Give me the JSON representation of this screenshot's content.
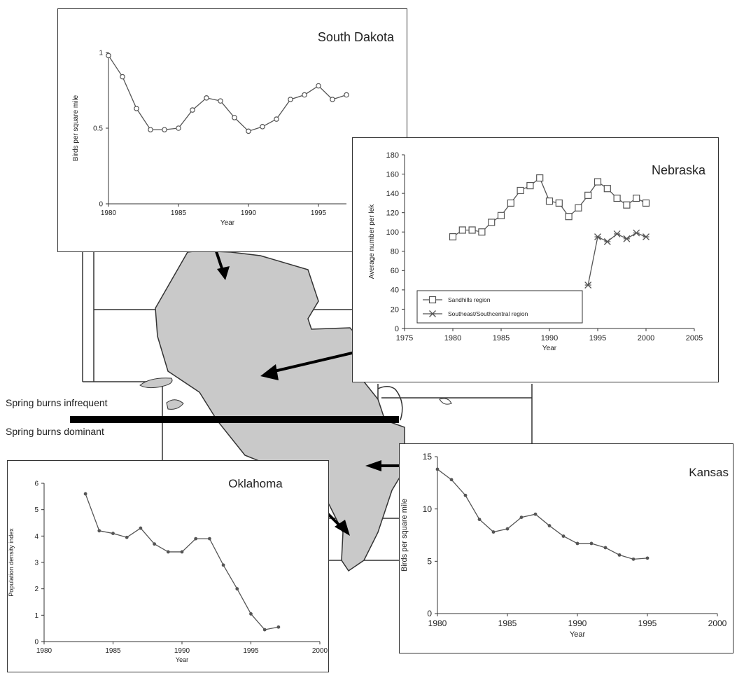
{
  "burn_labels": {
    "infrequent": "Spring burns infrequent",
    "dominant": "Spring burns dominant"
  },
  "colors": {
    "line": "#555555",
    "frame": "#333333",
    "map_fill": "#c9c9c9",
    "text": "#222222"
  },
  "chart_data": [
    {
      "id": "south-dakota",
      "type": "line",
      "title": "South Dakota",
      "xlabel": "Year",
      "ylabel": "Birds per square mile",
      "xlim": [
        1980,
        1997
      ],
      "ylim": [
        0,
        1
      ],
      "xticks": [
        1980,
        1985,
        1990,
        1995
      ],
      "yticks": [
        0,
        0.5,
        1
      ],
      "ytick_labels": [
        "0",
        "0.5",
        "1"
      ],
      "marker": "circle",
      "series": [
        {
          "x": [
            1980,
            1981,
            1982,
            1983,
            1984,
            1985,
            1986,
            1987,
            1988,
            1989,
            1990,
            1991,
            1992,
            1993,
            1994,
            1995,
            1996,
            1997
          ],
          "values": [
            0.98,
            0.84,
            0.63,
            0.49,
            0.49,
            0.5,
            0.62,
            0.7,
            0.68,
            0.57,
            0.48,
            0.51,
            0.56,
            0.69,
            0.72,
            0.78,
            0.69,
            0.72
          ]
        }
      ]
    },
    {
      "id": "nebraska",
      "type": "line",
      "title": "Nebraska",
      "xlabel": "Year",
      "ylabel": "Average number per lek",
      "xlim": [
        1975,
        2005
      ],
      "ylim": [
        0,
        180
      ],
      "xticks": [
        1975,
        1980,
        1985,
        1990,
        1995,
        2000,
        2005
      ],
      "yticks": [
        0,
        20,
        40,
        60,
        80,
        100,
        120,
        140,
        160,
        180
      ],
      "legend_position": "bottom-left",
      "series": [
        {
          "name": "Sandhills region",
          "marker": "square",
          "x": [
            1980,
            1981,
            1982,
            1983,
            1984,
            1985,
            1986,
            1987,
            1988,
            1989,
            1990,
            1991,
            1992,
            1993,
            1994,
            1995,
            1996,
            1997,
            1998,
            1999,
            2000
          ],
          "values": [
            95,
            102,
            102,
            100,
            110,
            117,
            130,
            143,
            148,
            156,
            132,
            130,
            116,
            125,
            138,
            152,
            145,
            135,
            128,
            135,
            130
          ]
        },
        {
          "name": "Southeast/Southcentral region",
          "marker": "star",
          "x": [
            1994,
            1995,
            1996,
            1997,
            1998,
            1999,
            2000
          ],
          "values": [
            45,
            95,
            90,
            98,
            93,
            99,
            95
          ]
        }
      ]
    },
    {
      "id": "oklahoma",
      "type": "line",
      "title": "Oklahoma",
      "xlabel": "Year",
      "ylabel": "Population density index",
      "xlim": [
        1980,
        2000
      ],
      "ylim": [
        0,
        6
      ],
      "xticks": [
        1980,
        1985,
        1990,
        1995,
        2000
      ],
      "yticks": [
        0,
        1,
        2,
        3,
        4,
        5,
        6
      ],
      "marker": "dot",
      "series": [
        {
          "x": [
            1983,
            1984,
            1985,
            1986,
            1987,
            1988,
            1989,
            1990,
            1991,
            1992,
            1993,
            1994,
            1995,
            1996,
            1997
          ],
          "values": [
            5.6,
            4.2,
            4.1,
            3.95,
            4.3,
            3.7,
            3.4,
            3.4,
            3.9,
            3.9,
            2.9,
            2.0,
            1.05,
            0.45,
            0.55
          ]
        }
      ]
    },
    {
      "id": "kansas",
      "type": "line",
      "title": "Kansas",
      "xlabel": "Year",
      "ylabel": "Birds per square mile",
      "xlim": [
        1980,
        2000
      ],
      "ylim": [
        0,
        15
      ],
      "xticks": [
        1980,
        1985,
        1990,
        1995,
        2000
      ],
      "yticks": [
        0,
        5,
        10,
        15
      ],
      "marker": "dot",
      "series": [
        {
          "x": [
            1980,
            1981,
            1982,
            1983,
            1984,
            1985,
            1986,
            1987,
            1988,
            1989,
            1990,
            1991,
            1992,
            1993,
            1994,
            1995
          ],
          "values": [
            13.8,
            12.8,
            11.3,
            9.0,
            7.8,
            8.1,
            9.2,
            9.5,
            8.4,
            7.4,
            6.7,
            6.7,
            6.3,
            5.6,
            5.2,
            5.3
          ]
        }
      ]
    }
  ]
}
